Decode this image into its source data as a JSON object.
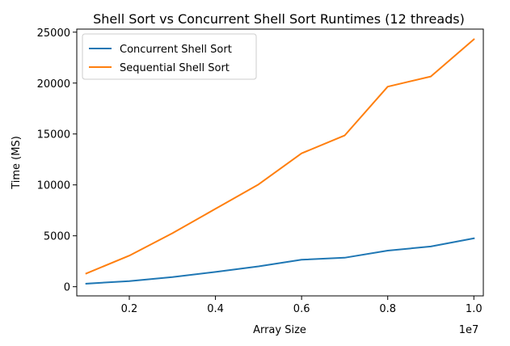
{
  "chart_data": {
    "type": "line",
    "title": "Shell Sort vs Concurrent Shell Sort Runtimes (12 threads)",
    "xlabel": "Array Size",
    "ylabel": "Time (MS)",
    "x_offset_label": "1e7",
    "x": [
      1000000,
      2000000,
      3000000,
      4000000,
      5000000,
      6000000,
      7000000,
      8000000,
      9000000,
      10000000
    ],
    "xlim": [
      780000,
      10220000
    ],
    "ylim": [
      -900,
      25300
    ],
    "xticks": [
      2000000,
      4000000,
      6000000,
      8000000,
      10000000
    ],
    "xtick_labels": [
      "0.2",
      "0.4",
      "0.6",
      "0.8",
      "1.0"
    ],
    "yticks": [
      0,
      5000,
      10000,
      15000,
      20000,
      25000
    ],
    "ytick_labels": [
      "0",
      "5000",
      "10000",
      "15000",
      "20000",
      "25000"
    ],
    "legend_position": "upper-left",
    "grid": false,
    "series": [
      {
        "name": "Concurrent Shell Sort",
        "color": "#1f77b4",
        "values": [
          300,
          550,
          950,
          1450,
          2000,
          2650,
          2850,
          3550,
          3950,
          4750
        ]
      },
      {
        "name": "Sequential Shell Sort",
        "color": "#ff7f0e",
        "values": [
          1300,
          3050,
          5250,
          7650,
          10050,
          13100,
          14850,
          19650,
          20650,
          24300
        ]
      }
    ]
  }
}
